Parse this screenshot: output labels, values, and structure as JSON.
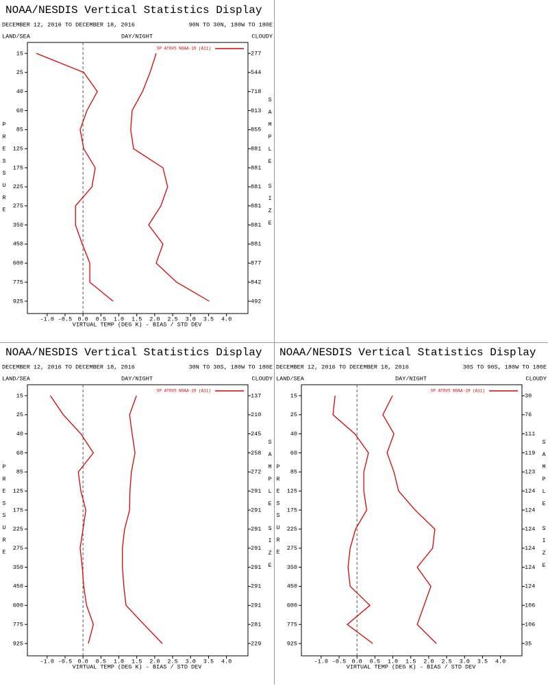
{
  "chart_data": [
    {
      "type": "line",
      "orientation": "horizontal",
      "title": "NOAA/NESDIS Vertical Statistics Display",
      "subtitle": "DECEMBER 12, 2016 TO DECEMBER 18, 2016",
      "region": "90N TO 30N, 180W TO 180E",
      "land_sea_label": "LAND/SEA",
      "day_night_label": "DAY/NIGHT",
      "cloudy_label": "CLOUDY",
      "y_label": "PRESSURE",
      "y2_label": "SAMPLE SIZE",
      "x_label": "VIRTUAL TEMP (DEG K) - BIAS / STD DEV",
      "legend": "SP ATOVS NOAA-19 (A11)",
      "zero_line": true,
      "categories": [
        15,
        25,
        40,
        60,
        85,
        125,
        175,
        225,
        275,
        350,
        450,
        600,
        775,
        925
      ],
      "sample_size": [
        277,
        544,
        718,
        813,
        855,
        881,
        881,
        881,
        881,
        881,
        881,
        877,
        842,
        492
      ],
      "series": [
        {
          "color": "#e00000",
          "values": [
            -1.3,
            0.02,
            0.4,
            0.11,
            -0.08,
            0.02,
            0.34,
            0.25,
            -0.21,
            -0.21,
            -0.02,
            0.19,
            0.19,
            0.84
          ]
        },
        {
          "color": "#e00000",
          "values": [
            2.04,
            1.87,
            1.66,
            1.37,
            1.33,
            1.41,
            2.23,
            2.36,
            2.17,
            1.83,
            2.23,
            2.04,
            2.61,
            3.52
          ]
        }
      ],
      "xlim": [
        -1.55,
        4.6
      ],
      "xticks": [
        {
          "value": -1,
          "label": "-1.0"
        },
        {
          "value": -0.5,
          "label": "-0.5"
        },
        {
          "value": 0,
          "label": "0.0"
        },
        0.5,
        {
          "value": 1,
          "label": "1.0"
        },
        1.5,
        {
          "value": 2,
          "label": "2.0"
        },
        2.5,
        {
          "value": 3,
          "label": "3.0"
        },
        3.5,
        {
          "value": 4,
          "label": "4.0"
        }
      ]
    },
    {
      "type": "line",
      "orientation": "horizontal",
      "title": "NOAA/NESDIS Vertical Statistics Display",
      "subtitle": "DECEMBER 12, 2016 TO DECEMBER 18, 2016",
      "region": "30N TO 30S, 180W TO 180E",
      "land_sea_label": "LAND/SEA",
      "day_night_label": "DAY/NIGHT",
      "cloudy_label": "CLOUDY",
      "y_label": "PRESSURE",
      "y2_label": "SAMPLE SIZE",
      "x_label": "VIRTUAL TEMP (DEG K) - BIAS / STD DEV",
      "legend": "SP ATOVS NOAA-19 (A11)",
      "zero_line": true,
      "categories": [
        15,
        25,
        40,
        60,
        85,
        125,
        175,
        225,
        275,
        350,
        450,
        600,
        775,
        925
      ],
      "sample_size": [
        137,
        210,
        245,
        258,
        272,
        291,
        291,
        291,
        291,
        291,
        291,
        291,
        281,
        229
      ],
      "series": [
        {
          "color": "#e00000",
          "values": [
            -0.91,
            -0.55,
            -0.06,
            0.29,
            -0.13,
            -0.06,
            0.08,
            0.0,
            -0.08,
            -0.02,
            0.02,
            0.1,
            0.29,
            0.15
          ]
        },
        {
          "color": "#e00000",
          "values": [
            1.49,
            1.3,
            1.37,
            1.45,
            1.35,
            1.31,
            1.3,
            1.16,
            1.1,
            1.1,
            1.14,
            1.2,
            1.7,
            2.21
          ]
        }
      ],
      "xlim": [
        -1.55,
        4.6
      ],
      "xticks": [
        {
          "value": -1,
          "label": "-1.0"
        },
        {
          "value": -0.5,
          "label": "-0.5"
        },
        {
          "value": 0,
          "label": "0.0"
        },
        0.5,
        {
          "value": 1,
          "label": "1.0"
        },
        1.5,
        {
          "value": 2,
          "label": "2.0"
        },
        2.5,
        {
          "value": 3,
          "label": "3.0"
        },
        3.5,
        {
          "value": 4,
          "label": "4.0"
        }
      ]
    },
    {
      "type": "line",
      "orientation": "horizontal",
      "title": "NOAA/NESDIS Vertical Statistics Display",
      "subtitle": "DECEMBER 12, 2016 TO DECEMBER 18, 2016",
      "region": "30S TO 90S, 180W TO 180E",
      "land_sea_label": "LAND/SEA",
      "day_night_label": "DAY/NIGHT",
      "cloudy_label": "CLOUDY",
      "y_label": "PRESSURE",
      "y2_label": "SAMPLE SIZE",
      "x_label": "VIRTUAL TEMP (DEG K) - BIAS / STD DEV",
      "legend": "SP ATOVS NOAA-19 (A11)",
      "zero_line": true,
      "categories": [
        15,
        25,
        40,
        60,
        85,
        125,
        175,
        225,
        275,
        350,
        450,
        600,
        775,
        925
      ],
      "sample_size": [
        30,
        76,
        111,
        119,
        123,
        124,
        124,
        124,
        124,
        124,
        124,
        106,
        106,
        35
      ],
      "series": [
        {
          "color": "#e00000",
          "values": [
            -0.61,
            -0.67,
            -0.06,
            0.32,
            0.19,
            0.19,
            0.27,
            -0.04,
            -0.19,
            -0.25,
            -0.19,
            0.36,
            -0.27,
            0.44
          ]
        },
        {
          "color": "#e00000",
          "values": [
            0.99,
            0.72,
            1.03,
            0.84,
            1.03,
            1.16,
            1.62,
            2.17,
            2.11,
            1.68,
            2.06,
            1.87,
            1.68,
            2.21
          ]
        }
      ],
      "xlim": [
        -1.55,
        4.6
      ],
      "xticks": [
        {
          "value": -1,
          "label": "-1.0"
        },
        {
          "value": -0.5,
          "label": "-0.5"
        },
        {
          "value": 0,
          "label": "0.0"
        },
        0.5,
        {
          "value": 1,
          "label": "1.0"
        },
        1.5,
        {
          "value": 2,
          "label": "2.0"
        },
        2.5,
        {
          "value": 3,
          "label": "3.0"
        },
        3.5,
        {
          "value": 4,
          "label": "4.0"
        }
      ]
    }
  ]
}
